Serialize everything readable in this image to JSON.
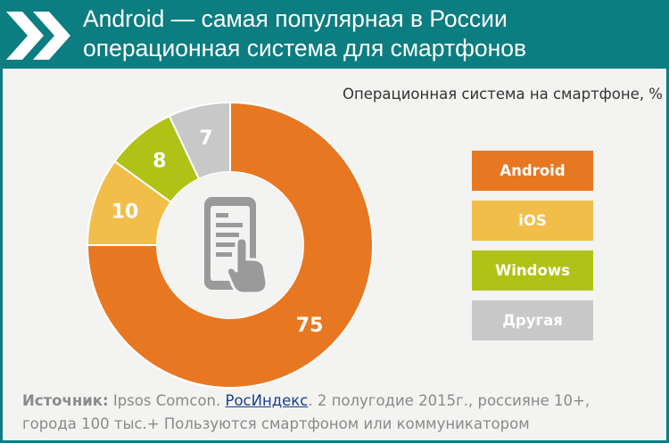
{
  "header": {
    "title_line1": "Android — самая популярная в России",
    "title_line2": "операционная система для смартфонов"
  },
  "chart_data": {
    "type": "pie",
    "subtitle": "Операционная система на смартфоне, %",
    "categories": [
      "Android",
      "iOS",
      "Windows",
      "Другая"
    ],
    "values": [
      75,
      10,
      8,
      7
    ],
    "colors": [
      "#e87722",
      "#f2be4a",
      "#b1c216",
      "#c8c8c8"
    ],
    "legend_placement": "right",
    "center_icon": "smartphone-tap-icon"
  },
  "footer": {
    "source_label": "Источник:",
    "source_pre": " Ipsos Comcon. ",
    "source_link": "РосИндекс",
    "source_post_line1": ". 2 полугодие 2015г., россияне 10+,",
    "source_line2": "города 100 тыс.+ Пользуются смартфоном или коммуникатором"
  }
}
